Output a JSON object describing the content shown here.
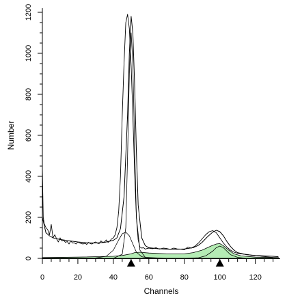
{
  "chart_data": {
    "type": "line",
    "xlabel": "Channels",
    "ylabel": "Number",
    "xlim": [
      0,
      134
    ],
    "ylim": [
      0,
      1200
    ],
    "xticks": [
      0,
      20,
      40,
      60,
      80,
      100,
      120
    ],
    "yticks": [
      0,
      200,
      400,
      600,
      800,
      1000,
      1200
    ],
    "grid": false,
    "fill_color": "#b4ecb4",
    "markers": [
      {
        "x": 50,
        "shape": "triangle-up"
      },
      {
        "x": 100,
        "shape": "triangle-up"
      }
    ],
    "series": [
      {
        "kind": "histogram",
        "x": [
          0,
          0.5,
          1,
          2,
          3,
          4,
          5,
          6,
          7,
          8,
          9,
          10,
          11,
          12,
          13,
          14,
          15,
          16,
          17,
          18,
          19,
          20,
          21,
          22,
          23,
          24,
          25,
          26,
          27,
          28,
          29,
          30,
          31,
          32,
          33,
          34,
          35,
          36,
          37,
          38,
          39,
          40,
          41,
          42,
          43,
          44,
          45,
          46,
          47,
          48,
          49,
          50,
          51,
          52,
          53,
          54,
          55,
          56,
          57,
          58,
          59,
          60,
          62,
          64,
          66,
          68,
          70,
          72,
          74,
          76,
          78,
          80,
          82,
          84,
          86,
          88,
          90,
          92,
          94,
          96,
          98,
          100,
          102,
          104,
          106,
          108,
          110,
          112,
          114,
          116,
          118,
          120,
          122,
          124,
          126,
          128,
          130,
          132
        ],
        "values": [
          440,
          200,
          170,
          150,
          140,
          115,
          165,
          100,
          115,
          95,
          80,
          100,
          85,
          88,
          78,
          82,
          70,
          85,
          75,
          76,
          70,
          80,
          75,
          72,
          70,
          74,
          68,
          78,
          72,
          70,
          76,
          80,
          74,
          72,
          85,
          78,
          80,
          90,
          78,
          85,
          95,
          100,
          115,
          150,
          230,
          400,
          700,
          950,
          1150,
          1190,
          1120,
          940,
          700,
          420,
          200,
          90,
          55,
          50,
          52,
          45,
          48,
          50,
          47,
          52,
          45,
          50,
          48,
          44,
          50,
          46,
          45,
          42,
          55,
          50,
          60,
          75,
          95,
          115,
          130,
          135,
          125,
          100,
          75,
          55,
          40,
          30,
          25,
          22,
          20,
          18,
          15,
          14,
          12,
          10,
          8,
          6,
          4
        ]
      },
      {
        "kind": "fit",
        "x": [
          0,
          2,
          4,
          6,
          8,
          10,
          15,
          20,
          25,
          30,
          35,
          40,
          42,
          44,
          46,
          48,
          49,
          50,
          51,
          52,
          53,
          54,
          56,
          58,
          60,
          65,
          70,
          75,
          80,
          85,
          88,
          90,
          93,
          96,
          98,
          100,
          102,
          104,
          106,
          108,
          110,
          115,
          120,
          125,
          130,
          133
        ],
        "values": [
          200,
          125,
          110,
          100,
          96,
          92,
          86,
          80,
          76,
          75,
          78,
          88,
          100,
          145,
          300,
          700,
          1000,
          1180,
          1100,
          850,
          520,
          260,
          100,
          62,
          52,
          47,
          45,
          44,
          46,
          52,
          64,
          78,
          105,
          128,
          137,
          130,
          110,
          82,
          58,
          40,
          28,
          18,
          14,
          12,
          10,
          8
        ]
      },
      {
        "kind": "component",
        "x": [
          0,
          10,
          20,
          30,
          36,
          40,
          43,
          45,
          47,
          49,
          51,
          53,
          56,
          60,
          70,
          80,
          90,
          100,
          110,
          120,
          130
        ],
        "values": [
          0,
          0,
          0,
          2,
          10,
          40,
          90,
          120,
          128,
          110,
          70,
          30,
          8,
          2,
          0,
          0,
          0,
          0,
          0,
          0,
          0
        ]
      },
      {
        "kind": "component",
        "x": [
          0,
          40,
          45,
          47,
          48,
          49,
          50,
          51,
          52,
          53,
          55,
          58,
          70
        ],
        "values": [
          0,
          0,
          20,
          150,
          500,
          900,
          1100,
          950,
          550,
          200,
          40,
          5,
          0
        ]
      },
      {
        "kind": "filled",
        "x": [
          0,
          20,
          40,
          45,
          50,
          52,
          55,
          60,
          70,
          80,
          85,
          90,
          95,
          98,
          100,
          102,
          105,
          108,
          112,
          120,
          133
        ],
        "values": [
          4,
          6,
          10,
          14,
          22,
          28,
          30,
          26,
          22,
          22,
          28,
          40,
          60,
          70,
          72,
          62,
          40,
          22,
          12,
          6,
          4
        ]
      },
      {
        "kind": "component",
        "x": [
          0,
          80,
          88,
          92,
          96,
          98,
          100,
          102,
          104,
          106,
          110,
          115
        ],
        "values": [
          0,
          0,
          3,
          12,
          35,
          52,
          60,
          52,
          35,
          18,
          5,
          0
        ]
      }
    ]
  }
}
